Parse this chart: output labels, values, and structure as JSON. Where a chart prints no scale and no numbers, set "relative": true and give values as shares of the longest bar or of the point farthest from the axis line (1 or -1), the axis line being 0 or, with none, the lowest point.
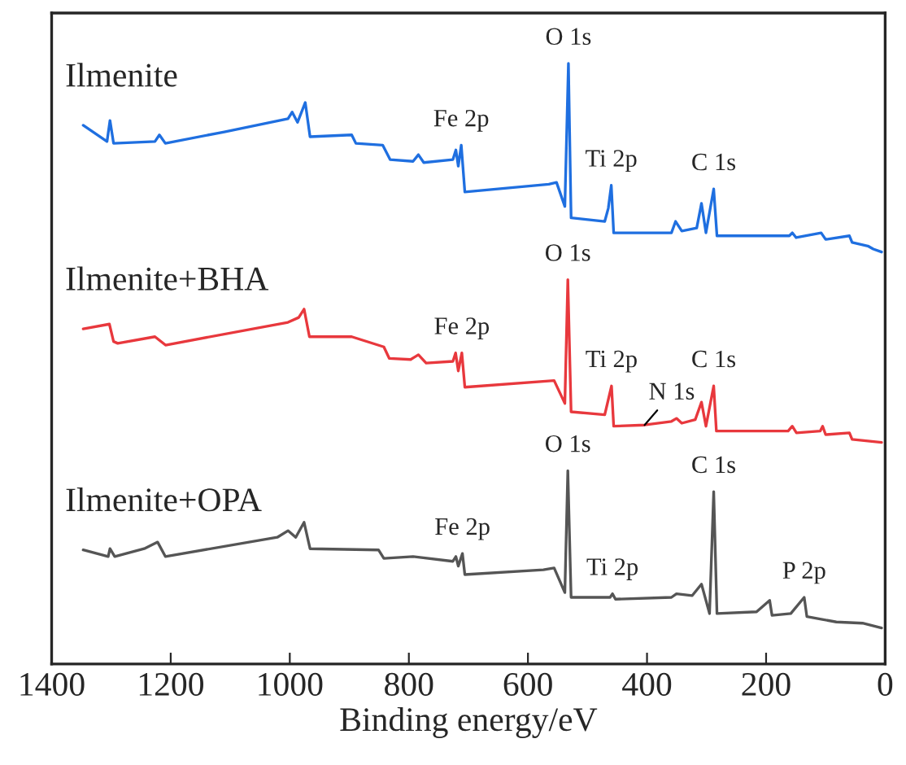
{
  "chart_data": {
    "type": "line",
    "relative": true,
    "xlabel": "Binding energy/eV",
    "xlim": [
      1400,
      0
    ],
    "xticks": [
      1400,
      1200,
      1000,
      800,
      600,
      400,
      200,
      0
    ],
    "legend": false,
    "grid": false,
    "series": [
      {
        "name": "Ilmenite",
        "color": "#1f6fe0",
        "x": [
          1347,
          1307,
          1302,
          1296,
          1226.5,
          1219,
          1209,
          1110,
          1003,
          996,
          987,
          974,
          966,
          896,
          889,
          844,
          831.5,
          793,
          784,
          775,
          726,
          721,
          717,
          712,
          706,
          565,
          552,
          538,
          532,
          527.5,
          471,
          465,
          460,
          456,
          359,
          352,
          341.6,
          316.5,
          308.5,
          301,
          288,
          282.5,
          161,
          156,
          149.5,
          107.5,
          100,
          60,
          55.5,
          29,
          20,
          6
        ],
        "values": [
          0.897,
          0.87,
          0.905,
          0.867,
          0.87,
          0.881,
          0.867,
          0.886,
          0.908,
          0.919,
          0.902,
          0.935,
          0.878,
          0.881,
          0.867,
          0.864,
          0.84,
          0.837,
          0.848,
          0.835,
          0.84,
          0.856,
          0.829,
          0.864,
          0.786,
          0.799,
          0.802,
          0.762,
          1.0,
          0.743,
          0.737,
          0.759,
          0.797,
          0.718,
          0.718,
          0.737,
          0.721,
          0.726,
          0.767,
          0.718,
          0.791,
          0.713,
          0.713,
          0.718,
          0.71,
          0.718,
          0.707,
          0.713,
          0.702,
          0.696,
          0.691,
          0.686
        ]
      },
      {
        "name": "Ilmenite+BHA",
        "color": "#e8383d",
        "x": [
          1347,
          1303,
          1296,
          1289,
          1226.5,
          1208.7,
          1003,
          985,
          976,
          967,
          896,
          842,
          833,
          797,
          784,
          771,
          726,
          721.5,
          717,
          711,
          706,
          556,
          538,
          533,
          527.5,
          471,
          459.6,
          456,
          404,
          359,
          350.5,
          341.6,
          319,
          308.5,
          301,
          288,
          283.5,
          163,
          156,
          149,
          109,
          105,
          100,
          60,
          55.5,
          6
        ],
        "values": [
          0.558,
          0.566,
          0.537,
          0.534,
          0.545,
          0.531,
          0.569,
          0.577,
          0.591,
          0.545,
          0.545,
          0.528,
          0.509,
          0.507,
          0.515,
          0.501,
          0.504,
          0.518,
          0.488,
          0.518,
          0.461,
          0.472,
          0.434,
          0.64,
          0.42,
          0.415,
          0.463,
          0.396,
          0.398,
          0.404,
          0.409,
          0.401,
          0.407,
          0.436,
          0.396,
          0.463,
          0.388,
          0.388,
          0.396,
          0.385,
          0.388,
          0.396,
          0.382,
          0.385,
          0.374,
          0.369
        ]
      },
      {
        "name": "Ilmenite+OPA",
        "color": "#555555",
        "x": [
          1347,
          1305,
          1302,
          1294,
          1244.5,
          1222,
          1209,
          1021,
          1003,
          990,
          976,
          966,
          851,
          842,
          793,
          726,
          721,
          717,
          710,
          706,
          574,
          556,
          538,
          533,
          527.5,
          462,
          458,
          453,
          359,
          350.5,
          324,
          308.5,
          295,
          288,
          282.5,
          216,
          194,
          190,
          158.5,
          136,
          131.5,
          82,
          38,
          6
        ],
        "values": [
          0.19,
          0.179,
          0.192,
          0.179,
          0.192,
          0.203,
          0.179,
          0.211,
          0.222,
          0.211,
          0.236,
          0.192,
          0.19,
          0.176,
          0.179,
          0.171,
          0.179,
          0.163,
          0.184,
          0.149,
          0.157,
          0.16,
          0.119,
          0.322,
          0.111,
          0.111,
          0.117,
          0.108,
          0.111,
          0.117,
          0.114,
          0.133,
          0.084,
          0.287,
          0.084,
          0.087,
          0.106,
          0.081,
          0.084,
          0.111,
          0.079,
          0.07,
          0.068,
          0.06
        ]
      }
    ],
    "annotations": [
      {
        "text": "O 1s",
        "x": 532,
        "y": 1.0
      },
      {
        "text": "Fe 2p",
        "x": 712,
        "y": 0.864
      },
      {
        "text": "Ti 2p",
        "x": 460,
        "y": 0.797
      },
      {
        "text": "C 1s",
        "x": 288,
        "y": 0.791
      },
      {
        "text": "O 1s",
        "x": 533,
        "y": 0.64
      },
      {
        "text": "Fe 2p",
        "x": 711,
        "y": 0.518
      },
      {
        "text": "Ti 2p",
        "x": 459.6,
        "y": 0.463
      },
      {
        "text": "N 1s",
        "x": 404,
        "y": 0.398
      },
      {
        "text": "C 1s",
        "x": 288,
        "y": 0.463
      },
      {
        "text": "O 1s",
        "x": 533,
        "y": 0.322
      },
      {
        "text": "Fe 2p",
        "x": 710,
        "y": 0.184
      },
      {
        "text": "Ti 2p",
        "x": 458,
        "y": 0.117
      },
      {
        "text": "C 1s",
        "x": 288,
        "y": 0.287
      },
      {
        "text": "P 2p",
        "x": 136,
        "y": 0.111
      }
    ]
  }
}
